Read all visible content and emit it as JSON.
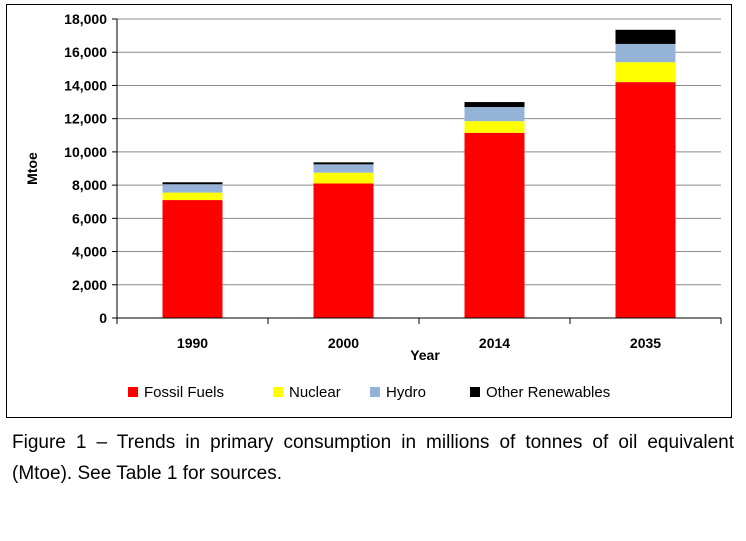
{
  "chart_data": {
    "type": "bar",
    "stacked": true,
    "categories": [
      "1990",
      "2000",
      "2014",
      "2035"
    ],
    "series": [
      {
        "name": "Fossil Fuels",
        "color": "#ff0000",
        "values": [
          7100,
          8100,
          11150,
          14200
        ]
      },
      {
        "name": "Nuclear",
        "color": "#ffff00",
        "values": [
          450,
          650,
          700,
          1200
        ]
      },
      {
        "name": "Hydro",
        "color": "#95b3d7",
        "values": [
          500,
          500,
          850,
          1100
        ]
      },
      {
        "name": "Other Renewables",
        "color": "#000000",
        "values": [
          120,
          120,
          300,
          850
        ]
      }
    ],
    "xlabel": "Year",
    "ylabel": "Mtoe",
    "ylim": [
      0,
      18000
    ],
    "yticks": [
      0,
      2000,
      4000,
      6000,
      8000,
      10000,
      12000,
      14000,
      16000,
      18000
    ],
    "ytick_labels": [
      "0",
      "2,000",
      "4,000",
      "6,000",
      "8,000",
      "10,000",
      "12,000",
      "14,000",
      "16,000",
      "18,000"
    ],
    "grid": true,
    "legend_position": "bottom"
  },
  "caption": "Figure 1 – Trends in primary consumption in millions of tonnes of oil equivalent (Mtoe). See Table 1 for sources."
}
